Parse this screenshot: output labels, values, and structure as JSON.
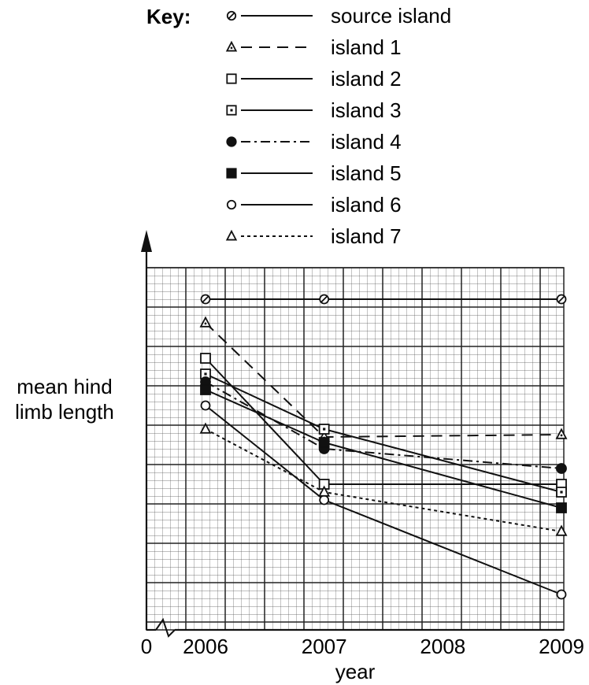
{
  "chart_data": {
    "type": "line",
    "title": "",
    "key_label": "Key:",
    "xlabel": "year",
    "ylabel_lines": [
      "mean hind",
      "limb length"
    ],
    "x_origin_label": "0",
    "x": [
      2006,
      2007,
      2009
    ],
    "x_ticks": [
      "2006",
      "2007",
      "2008",
      "2009"
    ],
    "xlim": [
      2005.5,
      2009.2
    ],
    "y_units": "relative grid units (no y-axis scale printed)",
    "ylim": [
      0,
      42
    ],
    "grid": true,
    "legend_position": "top",
    "series": [
      {
        "name": "source island",
        "marker": "slashed-circle",
        "line": "solid",
        "values": [
          42,
          42,
          42
        ]
      },
      {
        "name": "island 1",
        "marker": "dotted-triangle",
        "line": "dashed",
        "values": [
          39,
          24.5,
          24.8
        ]
      },
      {
        "name": "island 2",
        "marker": "open-square",
        "line": "solid",
        "values": [
          34.5,
          18.5,
          18.5
        ]
      },
      {
        "name": "island 3",
        "marker": "dotted-square",
        "line": "solid",
        "values": [
          32.5,
          25.5,
          17.5
        ]
      },
      {
        "name": "island 4",
        "marker": "filled-circle",
        "line": "dashdot",
        "values": [
          31.5,
          23,
          20.5
        ]
      },
      {
        "name": "island 5",
        "marker": "filled-square",
        "line": "solid",
        "values": [
          30.5,
          23.8,
          15.5
        ]
      },
      {
        "name": "island 6",
        "marker": "open-circle",
        "line": "solid",
        "values": [
          28.5,
          16.5,
          4.5
        ]
      },
      {
        "name": "island 7",
        "marker": "open-triangle",
        "line": "dotted",
        "values": [
          25.5,
          17.5,
          12.5
        ]
      }
    ]
  }
}
